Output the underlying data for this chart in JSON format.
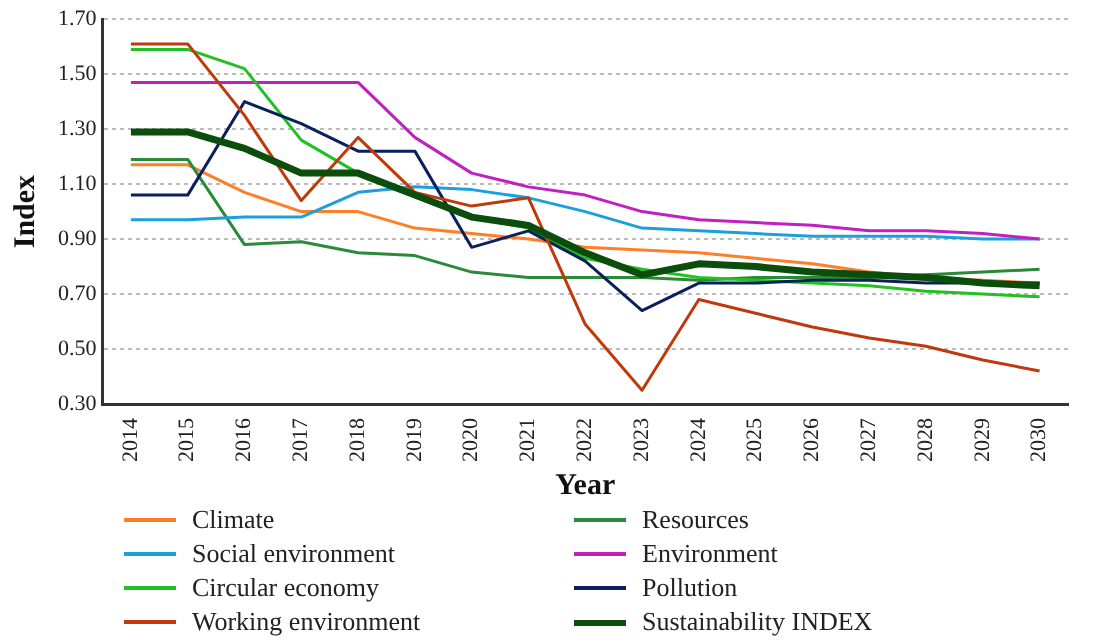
{
  "chart_data": {
    "type": "line",
    "xlabel": "Year",
    "ylabel": "Index",
    "categories": [
      "2014",
      "2015",
      "2016",
      "2017",
      "2018",
      "2019",
      "2020",
      "2021",
      "2022",
      "2023",
      "2024",
      "2025",
      "2026",
      "2027",
      "2028",
      "2029",
      "2030"
    ],
    "ylim": [
      0.3,
      1.7
    ],
    "yticks": [
      {
        "value": 0.3,
        "label": "0.30"
      },
      {
        "value": 0.5,
        "label": "0.50"
      },
      {
        "value": 0.7,
        "label": "0.70"
      },
      {
        "value": 0.9,
        "label": "0.90"
      },
      {
        "value": 1.1,
        "label": "1.10"
      },
      {
        "value": 1.3,
        "label": "1.30"
      },
      {
        "value": 1.5,
        "label": "1.50"
      },
      {
        "value": 1.7,
        "label": "1.70"
      }
    ],
    "grid": "y",
    "legend": "bottom",
    "marker": "none",
    "line_style": "solid",
    "series": [
      {
        "name": "Climate",
        "color": "#ff7f27",
        "values": [
          1.17,
          1.17,
          1.07,
          1.0,
          1.0,
          0.94,
          0.92,
          0.9,
          0.87,
          0.86,
          0.85,
          0.83,
          0.81,
          0.78,
          0.76,
          0.75,
          0.74
        ]
      },
      {
        "name": "Resources",
        "color": "#2a8a3a",
        "values": [
          1.19,
          1.19,
          0.88,
          0.89,
          0.85,
          0.84,
          0.78,
          0.76,
          0.76,
          0.76,
          0.75,
          0.76,
          0.76,
          0.76,
          0.77,
          0.78,
          0.79
        ]
      },
      {
        "name": "Social environment",
        "color": "#1ca0dc",
        "values": [
          0.97,
          0.97,
          0.98,
          0.98,
          1.07,
          1.09,
          1.08,
          1.05,
          1.0,
          0.94,
          0.93,
          0.92,
          0.91,
          0.91,
          0.91,
          0.9,
          0.9
        ]
      },
      {
        "name": "Environment",
        "color": "#c020c0",
        "values": [
          1.47,
          1.47,
          1.47,
          1.47,
          1.47,
          1.27,
          1.14,
          1.09,
          1.06,
          1.0,
          0.97,
          0.96,
          0.95,
          0.93,
          0.93,
          0.92,
          0.9
        ]
      },
      {
        "name": "Circular economy",
        "color": "#22c022",
        "values": [
          1.59,
          1.59,
          1.52,
          1.26,
          1.14,
          1.07,
          0.98,
          0.94,
          0.83,
          0.79,
          0.76,
          0.75,
          0.74,
          0.73,
          0.71,
          0.7,
          0.69
        ]
      },
      {
        "name": "Pollution",
        "color": "#0a1f5c",
        "values": [
          1.06,
          1.06,
          1.4,
          1.32,
          1.22,
          1.22,
          0.87,
          0.93,
          0.82,
          0.64,
          0.74,
          0.74,
          0.75,
          0.75,
          0.74,
          0.74,
          0.74
        ]
      },
      {
        "name": "Working environment",
        "color": "#c0390b",
        "values": [
          1.61,
          1.61,
          1.35,
          1.04,
          1.27,
          1.07,
          1.02,
          1.05,
          0.59,
          0.35,
          0.68,
          0.63,
          0.58,
          0.54,
          0.51,
          0.46,
          0.42
        ]
      },
      {
        "name": "Sustainability INDEX",
        "color": "#0b4d0b",
        "values": [
          1.29,
          1.29,
          1.23,
          1.14,
          1.14,
          1.06,
          0.98,
          0.95,
          0.85,
          0.77,
          0.81,
          0.8,
          0.78,
          0.77,
          0.76,
          0.74,
          0.73
        ]
      }
    ]
  }
}
